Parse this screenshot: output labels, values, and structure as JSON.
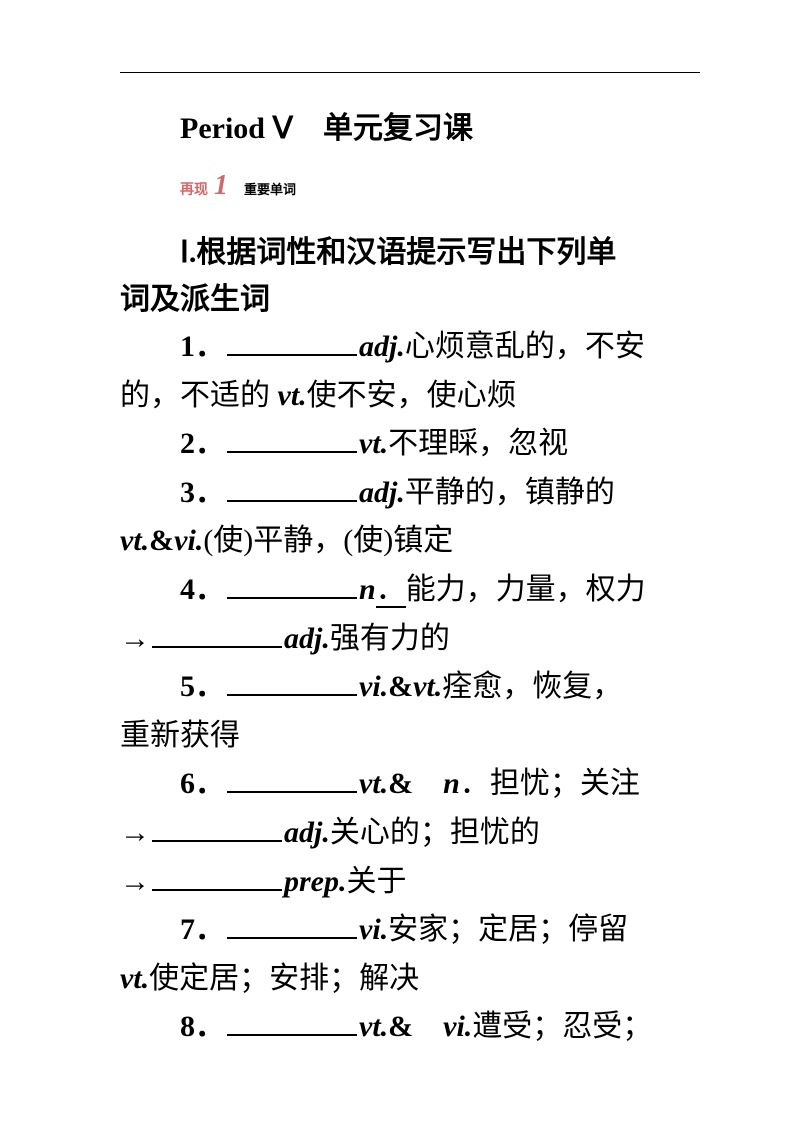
{
  "title": {
    "en": "Period Ⅴ",
    "spacer": "　",
    "zh": "单元复习课"
  },
  "box": {
    "label": "再现",
    "num": "1",
    "sub": "重要单词"
  },
  "section": {
    "roman": "Ⅰ.",
    "line1_rest": "根据词性和汉语提示写出下列单",
    "line2": "词及派生词"
  },
  "items": {
    "i1": {
      "n": "1．",
      "pos": "adj.",
      "t1": "心烦意乱的，不安",
      "t2a": "的，不适的 ",
      "pos2": "vt.",
      "t2b": "使不安，使心烦"
    },
    "i2": {
      "n": "2．",
      "pos": "vt.",
      "t": "不理睬，忽视"
    },
    "i3": {
      "n": "3．",
      "pos": "adj.",
      "t1": "平静的，镇静的 ",
      "pos2": "vt.",
      "amp": "&",
      "pos3": "vi.",
      "t2": "(使)平静，(使)镇定"
    },
    "i4": {
      "n": "4．",
      "pos": "n",
      "dot": "．",
      "t": "能力，力量，权力",
      "arrow": "→",
      "pos2": "adj.",
      "t2": "强有力的"
    },
    "i5": {
      "n": "5．",
      "pos": "vi.",
      "amp": "&",
      "pos2": "vt.",
      "t1": "痊愈，恢复，",
      "t2": "重新获得"
    },
    "i6": {
      "n": "6．",
      "pos": "vt.",
      "amp": "&",
      "sp": "　",
      "pos2": "n",
      "t1": "．担忧；关注",
      "arrow": "→",
      "pos3": "adj.",
      "t2": "关心的；担忧的",
      "pos4": "prep.",
      "t3": "关于"
    },
    "i7": {
      "n": "7．",
      "pos": "vi.",
      "t1": "安家；定居；停留 ",
      "pos2": "vt.",
      "t2": "使定居；安排；解决"
    },
    "i8": {
      "n": "8．",
      "pos": "vt.",
      "amp": "&",
      "sp": "　",
      "pos2": "vi.",
      "t": "遭受；忍受；"
    }
  }
}
